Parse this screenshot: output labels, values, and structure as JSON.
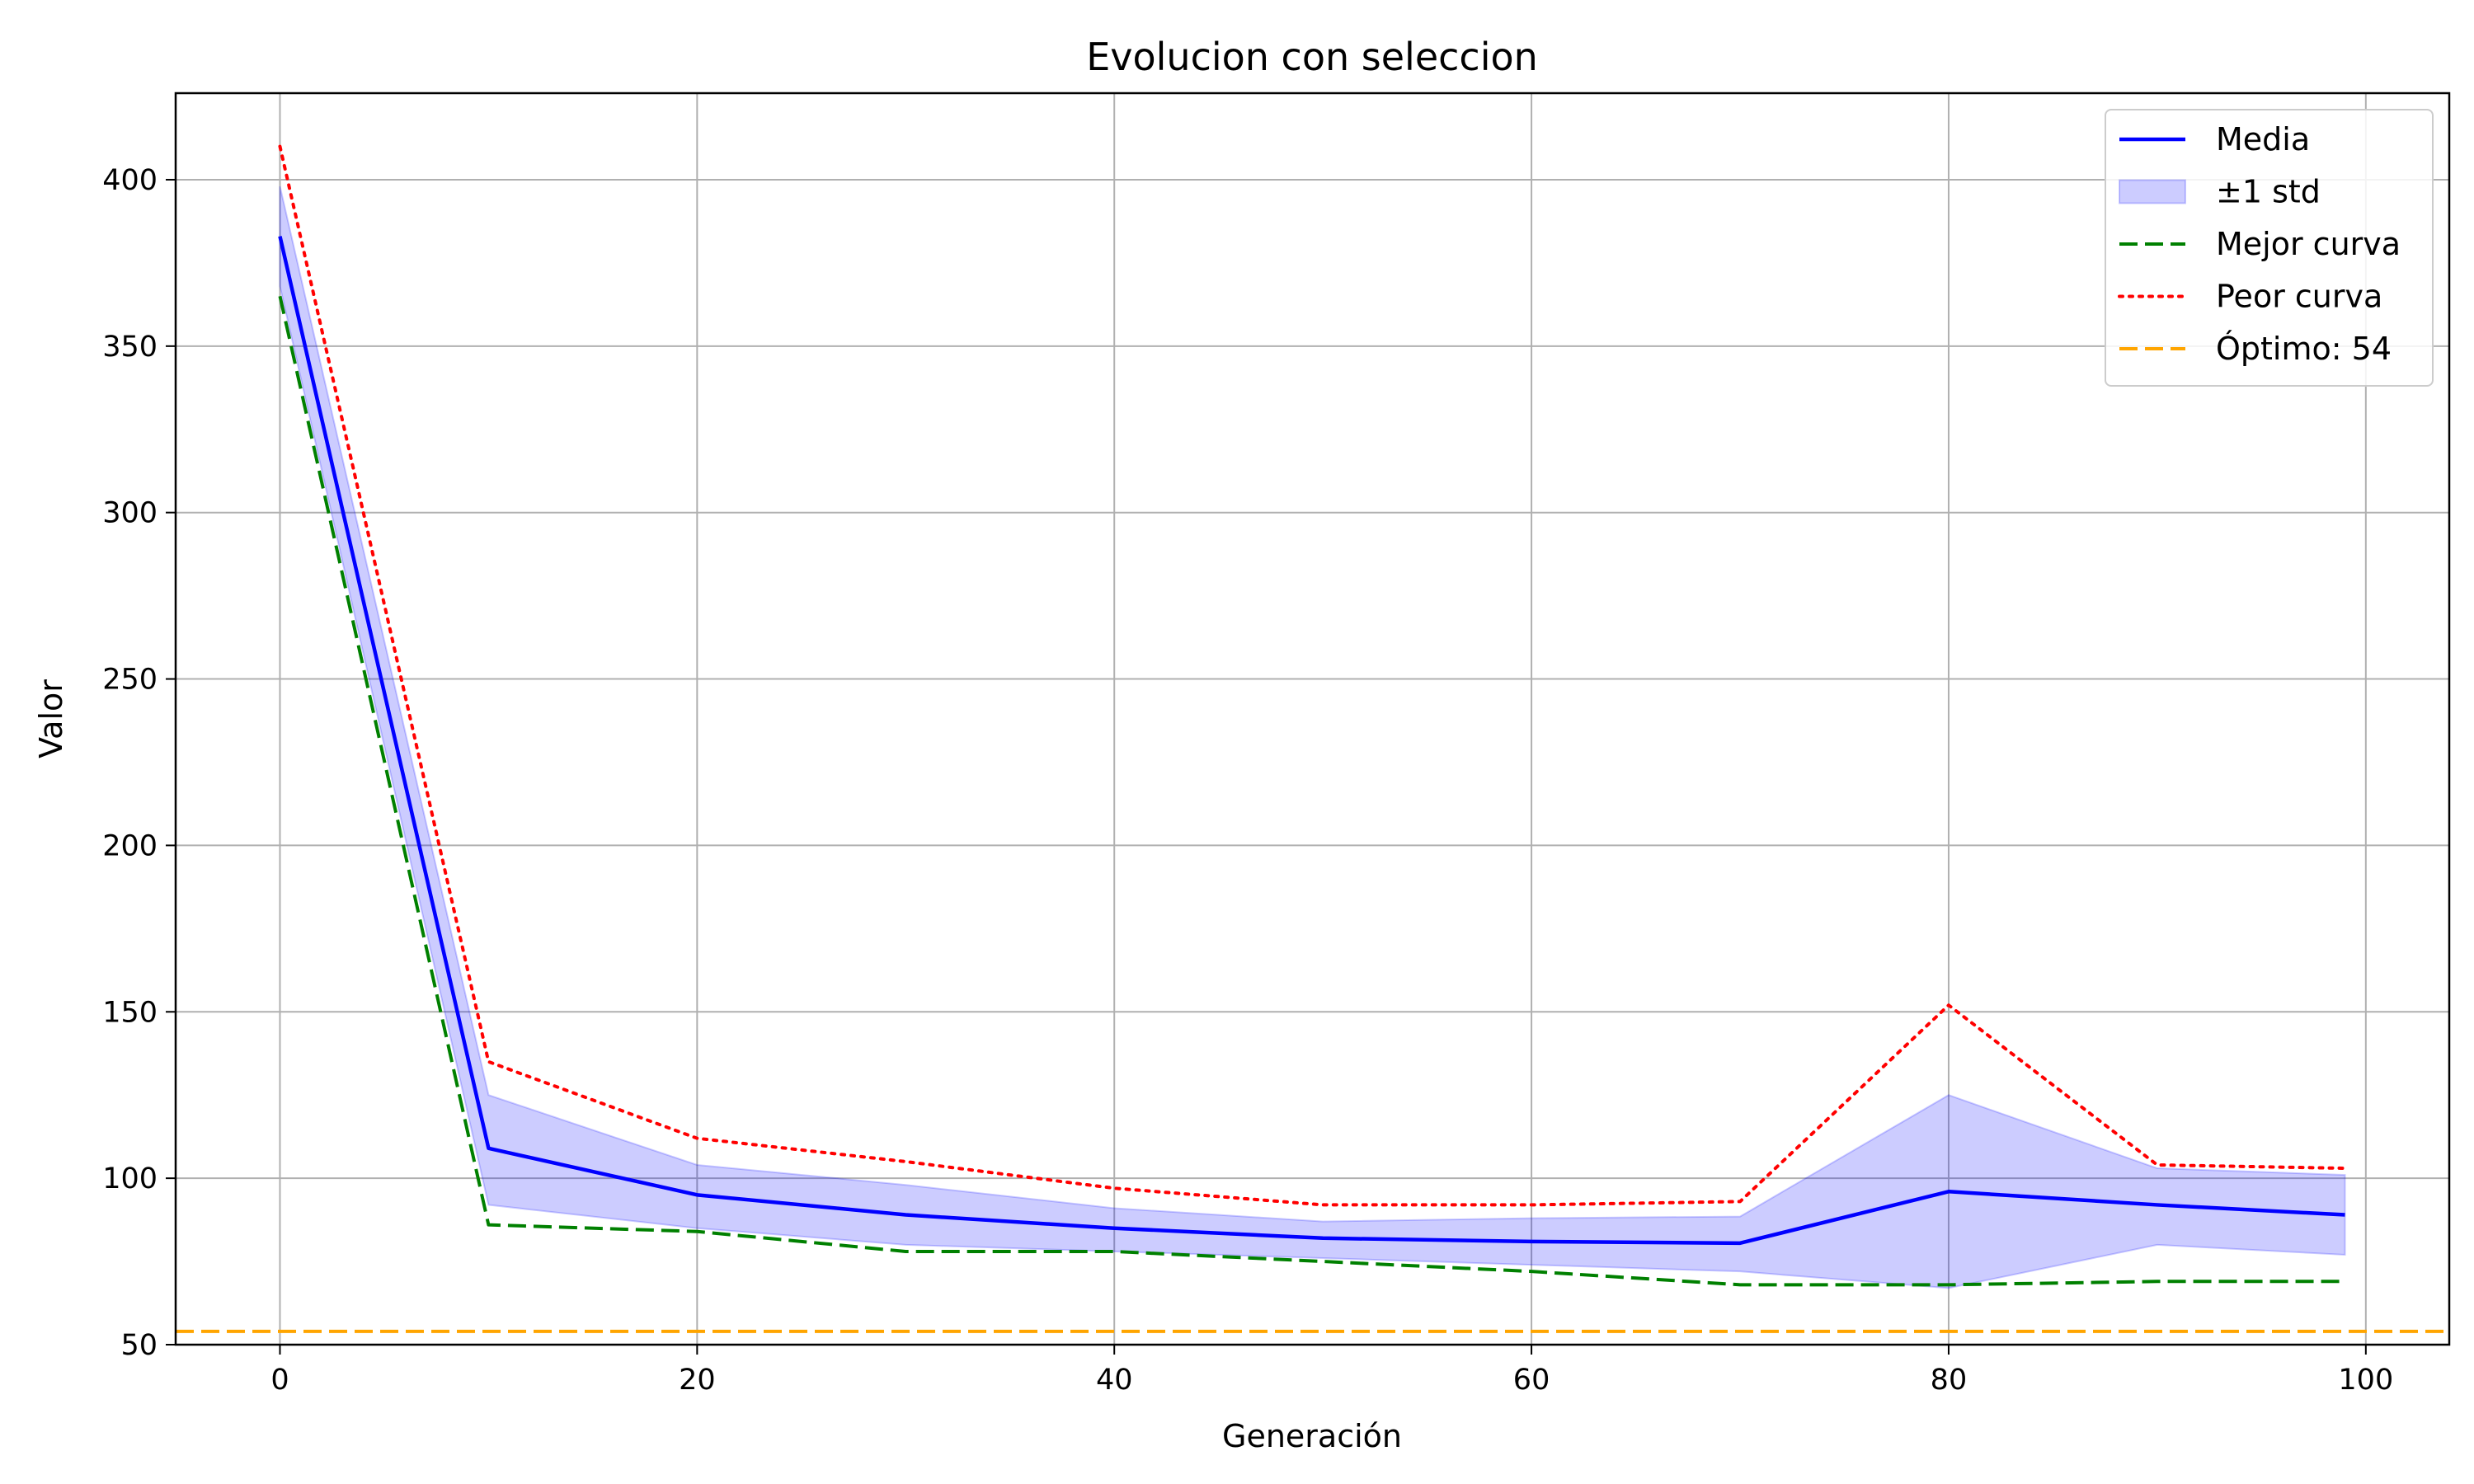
{
  "chart_data": {
    "type": "line",
    "title": "Evolucion con seleccion",
    "xlabel": "Generación",
    "ylabel": "Valor",
    "xlim": [
      -5,
      104
    ],
    "ylim": [
      50,
      426
    ],
    "xticks": [
      0,
      20,
      40,
      60,
      80,
      100
    ],
    "yticks": [
      50,
      100,
      150,
      200,
      250,
      300,
      350,
      400
    ],
    "grid": true,
    "legend_position": "top-right",
    "x": [
      0,
      10,
      20,
      30,
      40,
      50,
      60,
      70,
      80,
      90,
      99
    ],
    "series": [
      {
        "name": "Media",
        "kind": "line",
        "style": "solid",
        "color": "#0000ff",
        "values": [
          383,
          109,
          95,
          89,
          85,
          82,
          81,
          80.5,
          96,
          92,
          89
        ]
      },
      {
        "name": "±1 std",
        "kind": "band",
        "color": "#0000ff",
        "lower": [
          368,
          92,
          85,
          80,
          78,
          76,
          74,
          72,
          67,
          80,
          77
        ],
        "upper": [
          398,
          125,
          104,
          98,
          91,
          87,
          88,
          88.5,
          125,
          103,
          101
        ]
      },
      {
        "name": "Mejor curva",
        "kind": "line",
        "style": "dashed",
        "color": "#008000",
        "values": [
          365,
          86,
          84,
          78,
          78,
          75,
          72,
          68,
          68,
          69,
          69
        ]
      },
      {
        "name": "Peor curva",
        "kind": "line",
        "style": "dotted",
        "color": "#ff0000",
        "values": [
          410,
          135,
          112,
          105,
          97,
          92,
          92,
          93,
          152,
          104,
          103
        ]
      },
      {
        "name": "Óptimo: 54",
        "kind": "hline",
        "style": "dashed",
        "color": "#ffa500",
        "y": 54
      }
    ]
  }
}
